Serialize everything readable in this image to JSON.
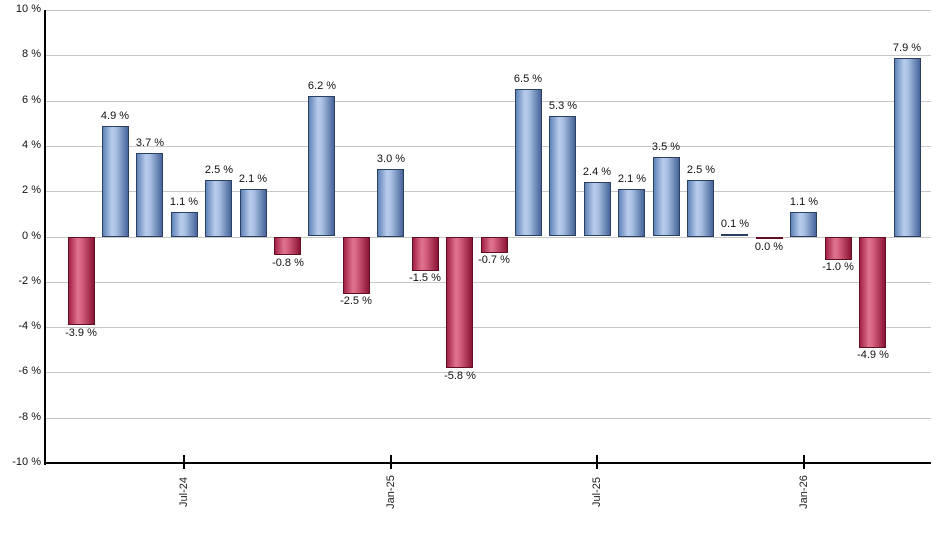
{
  "chart_data": {
    "type": "bar",
    "title": "",
    "xlabel": "",
    "ylabel": "",
    "grid": true,
    "legend": false,
    "background_color": "#ffffff",
    "grid_color": "#c8c8c8",
    "axis_color": "#000000",
    "text_color": "#111111",
    "positive_bar_colors": {
      "edge_dark": "#48659b",
      "highlight": "#b9cdec",
      "border": "#2b3f63"
    },
    "negative_bar_colors": {
      "edge_dark": "#8c1535",
      "highlight": "#e0758f",
      "border": "#5f0e24"
    },
    "y_axis": {
      "min": -10,
      "max": 10,
      "tick_step": 2,
      "tick_labels": [
        "10 %",
        "8 %",
        "6 %",
        "4 %",
        "2 %",
        "0 %",
        "-2 %",
        "-4 %",
        "-6 %",
        "-8 %",
        "-10 %"
      ],
      "tick_values": [
        10,
        8,
        6,
        4,
        2,
        0,
        -2,
        -4,
        -6,
        -8,
        -10
      ]
    },
    "x_ticks": [
      {
        "label": "Jul-24",
        "bar_index": 3
      },
      {
        "label": "Jan-25",
        "bar_index": 9
      },
      {
        "label": "Jul-25",
        "bar_index": 15
      },
      {
        "label": "Jan-26",
        "bar_index": 21
      }
    ],
    "bars": [
      {
        "value": -3.9,
        "label": "-3.9 %",
        "color": "red"
      },
      {
        "value": 4.9,
        "label": "4.9 %",
        "color": "blue"
      },
      {
        "value": 3.7,
        "label": "3.7 %",
        "color": "blue"
      },
      {
        "value": 1.1,
        "label": "1.1 %",
        "color": "blue"
      },
      {
        "value": 2.5,
        "label": "2.5 %",
        "color": "blue"
      },
      {
        "value": 2.1,
        "label": "2.1 %",
        "color": "blue"
      },
      {
        "value": -0.8,
        "label": "-0.8 %",
        "color": "red"
      },
      {
        "value": 6.2,
        "label": "6.2 %",
        "color": "blue"
      },
      {
        "value": -2.5,
        "label": "-2.5 %",
        "color": "red"
      },
      {
        "value": 3.0,
        "label": "3.0 %",
        "color": "blue"
      },
      {
        "value": -1.5,
        "label": "-1.5 %",
        "color": "red"
      },
      {
        "value": -5.8,
        "label": "-5.8 %",
        "color": "red"
      },
      {
        "value": -0.7,
        "label": "-0.7 %",
        "color": "red"
      },
      {
        "value": 6.5,
        "label": "6.5 %",
        "color": "blue"
      },
      {
        "value": 5.3,
        "label": "5.3 %",
        "color": "blue"
      },
      {
        "value": 2.4,
        "label": "2.4 %",
        "color": "blue"
      },
      {
        "value": 2.1,
        "label": "2.1 %",
        "color": "blue"
      },
      {
        "value": 3.5,
        "label": "3.5 %",
        "color": "blue"
      },
      {
        "value": 2.5,
        "label": "2.5 %",
        "color": "blue"
      },
      {
        "value": 0.1,
        "label": "0.1 %",
        "color": "blue"
      },
      {
        "value": 0.0,
        "label": "0.0 %",
        "color": "red"
      },
      {
        "value": 1.1,
        "label": "1.1 %",
        "color": "blue"
      },
      {
        "value": -1.0,
        "label": "-1.0 %",
        "color": "red"
      },
      {
        "value": -4.9,
        "label": "-4.9 %",
        "color": "red"
      },
      {
        "value": 7.9,
        "label": "7.9 %",
        "color": "blue"
      }
    ]
  }
}
